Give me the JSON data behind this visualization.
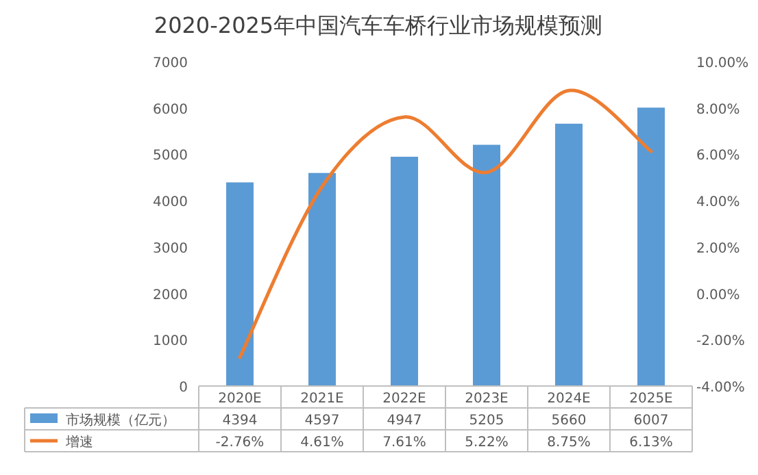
{
  "chart_data": {
    "type": "bar",
    "title": "2020-2025年中国汽车车桥行业市场规模预测",
    "categories": [
      "2020E",
      "2021E",
      "2022E",
      "2023E",
      "2024E",
      "2025E"
    ],
    "series": [
      {
        "name": "市场规模（亿元）",
        "color": "#5b9bd5",
        "values": [
          4394,
          4597,
          4947,
          5205,
          5660,
          6007
        ],
        "value_labels": [
          "4394",
          "4597",
          "4947",
          "5205",
          "5660",
          "6007"
        ]
      },
      {
        "name": "增速",
        "type": "line",
        "axis": "y2",
        "color": "#ed7d31",
        "values": [
          -2.76,
          4.61,
          7.61,
          5.22,
          8.75,
          6.13
        ],
        "value_labels": [
          "-2.76%",
          "4.61%",
          "7.61%",
          "5.22%",
          "8.75%",
          "6.13%"
        ]
      }
    ],
    "ylim": [
      0,
      7000
    ],
    "yticks": [
      0,
      1000,
      2000,
      3000,
      4000,
      5000,
      6000,
      7000
    ],
    "y2lim": [
      -4,
      10
    ],
    "y2ticks": [
      {
        "value": -4,
        "label": "-4.00%"
      },
      {
        "value": -2,
        "label": "-2.00%"
      },
      {
        "value": 0,
        "label": "0.00%"
      },
      {
        "value": 2,
        "label": "2.00%"
      },
      {
        "value": 4,
        "label": "4.00%"
      },
      {
        "value": 6,
        "label": "6.00%"
      },
      {
        "value": 8,
        "label": "8.00%"
      },
      {
        "value": 10,
        "label": "10.00%"
      }
    ],
    "legend": "bottom"
  }
}
